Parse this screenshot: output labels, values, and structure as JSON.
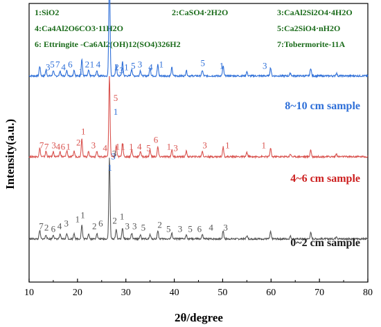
{
  "chart_data": {
    "type": "line",
    "xlabel": "2θ/degree",
    "ylabel": "Intensity(a.u.)",
    "xlim": [
      10,
      80
    ],
    "x_ticks": [
      10,
      20,
      30,
      40,
      50,
      60,
      70,
      80
    ],
    "legend": [
      "1:SiO2",
      "2:CaSO4·2H2O",
      "3:CaAl2Si2O4·4H2O",
      "4:Ca4Al2O6CO3·11H2O",
      "5:Ca2SiO4·nH2O",
      "6: Ettringite -Ca6Al2(OH)12(SO4)326H2",
      "7:Tobermorite-11A"
    ],
    "legend_color": "#1a6b1a",
    "series": [
      {
        "name": "8~10 cm sample",
        "color": "#2e6fd8",
        "label_color": "#2e6fd8",
        "baseline": 0.74,
        "peaks": [
          {
            "x": 12.2,
            "h": 0.035
          },
          {
            "x": 13.5,
            "h": 0.02
          },
          {
            "x": 15.0,
            "h": 0.02
          },
          {
            "x": 16.4,
            "h": 0.018
          },
          {
            "x": 17.8,
            "h": 0.02
          },
          {
            "x": 19.3,
            "h": 0.022
          },
          {
            "x": 20.9,
            "h": 0.06
          },
          {
            "x": 22.3,
            "h": 0.02
          },
          {
            "x": 24.0,
            "h": 0.02
          },
          {
            "x": 26.6,
            "h": 0.38
          },
          {
            "x": 28.0,
            "h": 0.04
          },
          {
            "x": 29.3,
            "h": 0.05
          },
          {
            "x": 31.2,
            "h": 0.025
          },
          {
            "x": 33.0,
            "h": 0.02
          },
          {
            "x": 35.0,
            "h": 0.03
          },
          {
            "x": 36.6,
            "h": 0.04
          },
          {
            "x": 39.5,
            "h": 0.03
          },
          {
            "x": 42.5,
            "h": 0.02
          },
          {
            "x": 45.8,
            "h": 0.02
          },
          {
            "x": 50.1,
            "h": 0.035
          },
          {
            "x": 55.0,
            "h": 0.015
          },
          {
            "x": 59.9,
            "h": 0.03
          },
          {
            "x": 64.0,
            "h": 0.01
          },
          {
            "x": 68.2,
            "h": 0.028
          },
          {
            "x": 73.5,
            "h": 0.01
          }
        ],
        "markers": [
          {
            "t": "1",
            "x": 26.7,
            "y": 0.4
          },
          {
            "t": "3",
            "x": 27.4,
            "y": 0.44
          },
          {
            "t": "1",
            "x": 27.9,
            "y": 0.6
          },
          {
            "t": "3",
            "x": 13.9,
            "y": 0.76
          },
          {
            "t": "5",
            "x": 14.8,
            "y": 0.77
          },
          {
            "t": "7",
            "x": 15.9,
            "y": 0.77
          },
          {
            "t": "4",
            "x": 17.1,
            "y": 0.76
          },
          {
            "t": "6",
            "x": 18.5,
            "y": 0.77
          },
          {
            "t": "1",
            "x": 20.7,
            "y": 0.745
          },
          {
            "t": "2",
            "x": 22.0,
            "y": 0.77
          },
          {
            "t": "1",
            "x": 23.0,
            "y": 0.77
          },
          {
            "t": "4",
            "x": 24.3,
            "y": 0.77
          },
          {
            "t": "2",
            "x": 28.1,
            "y": 0.76
          },
          {
            "t": "3",
            "x": 29.1,
            "y": 0.75
          },
          {
            "t": "1",
            "x": 30.1,
            "y": 0.76
          },
          {
            "t": "5",
            "x": 31.5,
            "y": 0.765
          },
          {
            "t": "3",
            "x": 32.9,
            "y": 0.77
          },
          {
            "t": "4",
            "x": 35.1,
            "y": 0.76
          },
          {
            "t": "1",
            "x": 37.3,
            "y": 0.77
          },
          {
            "t": "5",
            "x": 45.9,
            "y": 0.775
          },
          {
            "t": "1",
            "x": 49.8,
            "y": 0.765
          },
          {
            "t": "3",
            "x": 58.7,
            "y": 0.765
          }
        ]
      },
      {
        "name": "4~6 cm sample",
        "color": "#d9534f",
        "label_color": "#cc1f1f",
        "baseline": 0.45,
        "peaks": [
          {
            "x": 12.2,
            "h": 0.03
          },
          {
            "x": 13.5,
            "h": 0.02
          },
          {
            "x": 15.0,
            "h": 0.018
          },
          {
            "x": 16.4,
            "h": 0.018
          },
          {
            "x": 17.8,
            "h": 0.022
          },
          {
            "x": 19.3,
            "h": 0.02
          },
          {
            "x": 20.9,
            "h": 0.065
          },
          {
            "x": 22.3,
            "h": 0.02
          },
          {
            "x": 24.0,
            "h": 0.02
          },
          {
            "x": 26.6,
            "h": 0.29
          },
          {
            "x": 28.0,
            "h": 0.04
          },
          {
            "x": 29.3,
            "h": 0.05
          },
          {
            "x": 31.2,
            "h": 0.025
          },
          {
            "x": 33.0,
            "h": 0.02
          },
          {
            "x": 35.0,
            "h": 0.025
          },
          {
            "x": 36.6,
            "h": 0.035
          },
          {
            "x": 39.5,
            "h": 0.025
          },
          {
            "x": 42.5,
            "h": 0.02
          },
          {
            "x": 45.8,
            "h": 0.02
          },
          {
            "x": 50.1,
            "h": 0.035
          },
          {
            "x": 55.0,
            "h": 0.015
          },
          {
            "x": 59.9,
            "h": 0.03
          },
          {
            "x": 64.0,
            "h": 0.01
          },
          {
            "x": 68.2,
            "h": 0.025
          },
          {
            "x": 73.5,
            "h": 0.01
          }
        ],
        "markers": [
          {
            "t": "5",
            "x": 27.9,
            "y": 0.65
          },
          {
            "t": "7",
            "x": 12.6,
            "y": 0.48
          },
          {
            "t": "7",
            "x": 13.6,
            "y": 0.475
          },
          {
            "t": "3",
            "x": 15.1,
            "y": 0.48
          },
          {
            "t": "4",
            "x": 16.0,
            "y": 0.475
          },
          {
            "t": "6",
            "x": 17.0,
            "y": 0.475
          },
          {
            "t": "1",
            "x": 18.1,
            "y": 0.475
          },
          {
            "t": "1",
            "x": 21.2,
            "y": 0.53
          },
          {
            "t": "2",
            "x": 20.2,
            "y": 0.49
          },
          {
            "t": "3",
            "x": 23.3,
            "y": 0.48
          },
          {
            "t": "4",
            "x": 25.7,
            "y": 0.47
          },
          {
            "t": "1",
            "x": 28.3,
            "y": 0.475
          },
          {
            "t": "1",
            "x": 29.4,
            "y": 0.475
          },
          {
            "t": "1",
            "x": 31.1,
            "y": 0.475
          },
          {
            "t": "4",
            "x": 32.8,
            "y": 0.475
          },
          {
            "t": "5",
            "x": 34.7,
            "y": 0.47
          },
          {
            "t": "6",
            "x": 36.2,
            "y": 0.5
          },
          {
            "t": "1",
            "x": 38.9,
            "y": 0.475
          },
          {
            "t": "3",
            "x": 40.3,
            "y": 0.47
          },
          {
            "t": "3",
            "x": 46.3,
            "y": 0.48
          },
          {
            "t": "1",
            "x": 51.0,
            "y": 0.48
          },
          {
            "t": "1",
            "x": 58.5,
            "y": 0.48
          }
        ]
      },
      {
        "name": "0~2 cm sample",
        "color": "#555555",
        "label_color": "#1a1a1a",
        "baseline": 0.155,
        "peaks": [
          {
            "x": 12.2,
            "h": 0.03
          },
          {
            "x": 13.5,
            "h": 0.015
          },
          {
            "x": 15.0,
            "h": 0.015
          },
          {
            "x": 16.4,
            "h": 0.015
          },
          {
            "x": 17.8,
            "h": 0.02
          },
          {
            "x": 19.3,
            "h": 0.02
          },
          {
            "x": 20.9,
            "h": 0.05
          },
          {
            "x": 22.3,
            "h": 0.02
          },
          {
            "x": 24.0,
            "h": 0.02
          },
          {
            "x": 26.6,
            "h": 0.29
          },
          {
            "x": 28.0,
            "h": 0.035
          },
          {
            "x": 29.3,
            "h": 0.04
          },
          {
            "x": 31.2,
            "h": 0.02
          },
          {
            "x": 33.0,
            "h": 0.015
          },
          {
            "x": 35.0,
            "h": 0.015
          },
          {
            "x": 36.6,
            "h": 0.03
          },
          {
            "x": 39.5,
            "h": 0.02
          },
          {
            "x": 42.5,
            "h": 0.015
          },
          {
            "x": 45.8,
            "h": 0.015
          },
          {
            "x": 50.1,
            "h": 0.03
          },
          {
            "x": 55.0,
            "h": 0.012
          },
          {
            "x": 59.9,
            "h": 0.025
          },
          {
            "x": 64.0,
            "h": 0.01
          },
          {
            "x": 68.2,
            "h": 0.022
          },
          {
            "x": 73.5,
            "h": 0.01
          }
        ],
        "markers": [
          {
            "t": "3",
            "x": 27.6,
            "y": 0.45
          },
          {
            "t": "7",
            "x": 12.5,
            "y": 0.19
          },
          {
            "t": "2",
            "x": 13.6,
            "y": 0.185
          },
          {
            "t": "6",
            "x": 15.0,
            "y": 0.18
          },
          {
            "t": "4",
            "x": 16.3,
            "y": 0.19
          },
          {
            "t": "3",
            "x": 17.7,
            "y": 0.2
          },
          {
            "t": "1",
            "x": 20.0,
            "y": 0.215
          },
          {
            "t": "1",
            "x": 21.1,
            "y": 0.23
          },
          {
            "t": "2",
            "x": 23.5,
            "y": 0.19
          },
          {
            "t": "6",
            "x": 24.8,
            "y": 0.2
          },
          {
            "t": "2",
            "x": 27.7,
            "y": 0.21
          },
          {
            "t": "1",
            "x": 29.2,
            "y": 0.225
          },
          {
            "t": "3",
            "x": 30.3,
            "y": 0.19
          },
          {
            "t": "3",
            "x": 31.8,
            "y": 0.19
          },
          {
            "t": "5",
            "x": 33.6,
            "y": 0.185
          },
          {
            "t": "2",
            "x": 37.0,
            "y": 0.195
          },
          {
            "t": "5",
            "x": 38.8,
            "y": 0.18
          },
          {
            "t": "3",
            "x": 41.2,
            "y": 0.18
          },
          {
            "t": "5",
            "x": 43.3,
            "y": 0.18
          },
          {
            "t": "6",
            "x": 45.2,
            "y": 0.18
          },
          {
            "t": "4",
            "x": 47.6,
            "y": 0.185
          },
          {
            "t": "3",
            "x": 50.6,
            "y": 0.185
          }
        ]
      }
    ]
  }
}
